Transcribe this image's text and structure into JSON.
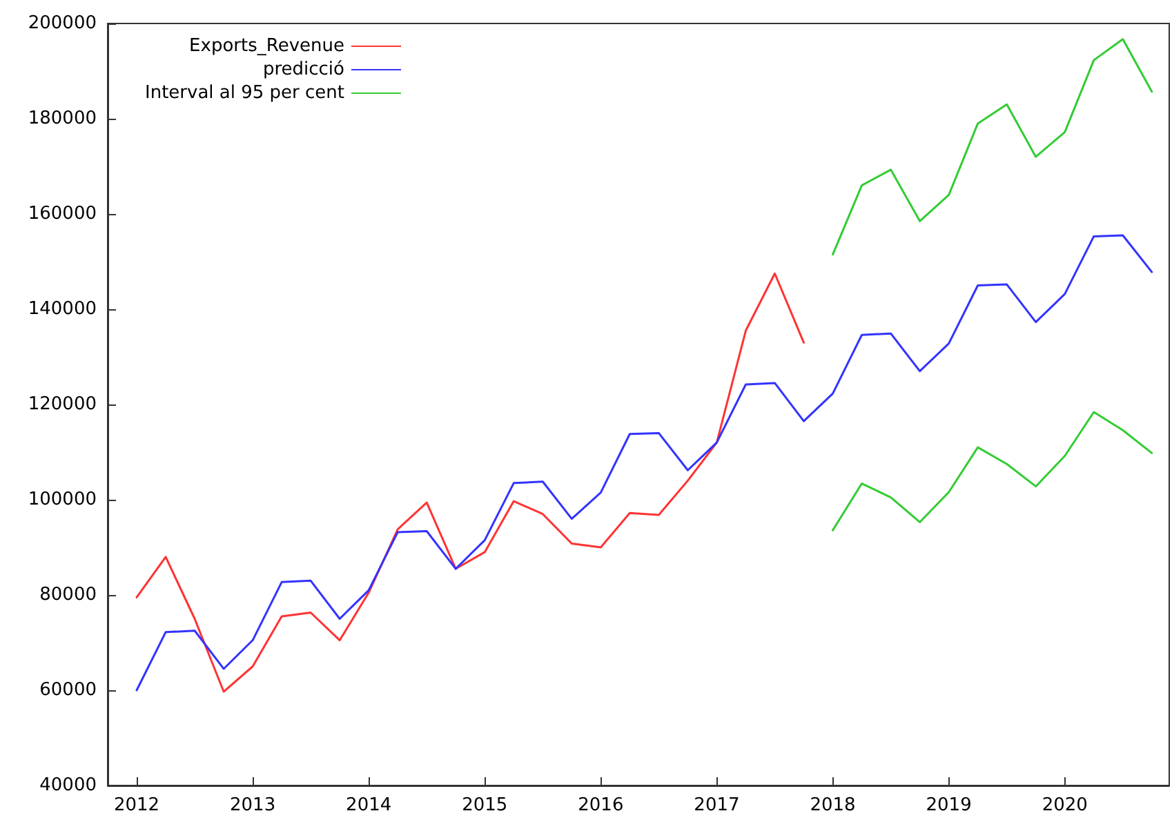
{
  "chart_data": {
    "type": "line",
    "xlim": [
      2011.75,
      2020.9
    ],
    "xticks": [
      2012,
      2013,
      2014,
      2015,
      2016,
      2017,
      2018,
      2019,
      2020
    ],
    "ylim": [
      40000,
      200000
    ],
    "yticks": [
      40000,
      60000,
      80000,
      100000,
      120000,
      140000,
      160000,
      180000,
      200000
    ],
    "grid": false,
    "legend": "top left",
    "marker": "none",
    "line_style": "solid",
    "series": [
      {
        "name": "Exports_Revenue",
        "color": "#ff3333",
        "x": [
          2012,
          2012.25,
          2012.5,
          2012.75,
          2013,
          2013.25,
          2013.5,
          2013.75,
          2014,
          2014.25,
          2014.5,
          2014.75,
          2015,
          2015.25,
          2015.5,
          2015.75,
          2016,
          2016.25,
          2016.5,
          2016.75,
          2017,
          2017.25,
          2017.5,
          2017.75
        ],
        "values": [
          79500,
          88000,
          75000,
          59700,
          65000,
          75500,
          76300,
          70500,
          80500,
          93800,
          99400,
          85500,
          89000,
          99700,
          97000,
          90800,
          90000,
          97200,
          96800,
          104000,
          112000,
          135500,
          147500,
          133000
        ]
      },
      {
        "name": "predicció",
        "color": "#3333ff",
        "x": [
          2012,
          2012.25,
          2012.5,
          2012.75,
          2013,
          2013.25,
          2013.5,
          2013.75,
          2014,
          2014.25,
          2014.5,
          2014.75,
          2015,
          2015.25,
          2015.5,
          2015.75,
          2016,
          2016.25,
          2016.5,
          2016.75,
          2017,
          2017.25,
          2017.5,
          2017.75,
          2018,
          2018.25,
          2018.5,
          2018.75,
          2019,
          2019.25,
          2019.5,
          2019.75,
          2020,
          2020.25,
          2020.5,
          2020.75
        ],
        "values": [
          60000,
          72200,
          72500,
          64500,
          70500,
          82700,
          83000,
          75000,
          81000,
          93200,
          93400,
          85500,
          91500,
          103500,
          103800,
          96000,
          101500,
          113800,
          114000,
          106200,
          112000,
          124200,
          124500,
          116500,
          122300,
          134600,
          134900,
          127000,
          132800,
          145000,
          145200,
          137300,
          143200,
          155300,
          155500,
          147800
        ]
      },
      {
        "name": "Interval al 95 per cent",
        "color": "#33cc33",
        "x": [
          2018,
          2018.25,
          2018.5,
          2018.75,
          2019,
          2019.25,
          2019.5,
          2019.75,
          2020,
          2020.25,
          2020.5,
          2020.75
        ],
        "values": [
          151500,
          166000,
          169300,
          158500,
          164000,
          179000,
          183000,
          172000,
          177200,
          192300,
          196700,
          185700
        ]
      },
      {
        "color": "#33cc33",
        "x": [
          2018,
          2018.25,
          2018.5,
          2018.75,
          2019,
          2019.25,
          2019.5,
          2019.75,
          2020,
          2020.25,
          2020.5,
          2020.75
        ],
        "values": [
          93600,
          103400,
          100500,
          95300,
          101600,
          111000,
          107500,
          102800,
          109200,
          118400,
          114600,
          109800
        ]
      }
    ]
  }
}
